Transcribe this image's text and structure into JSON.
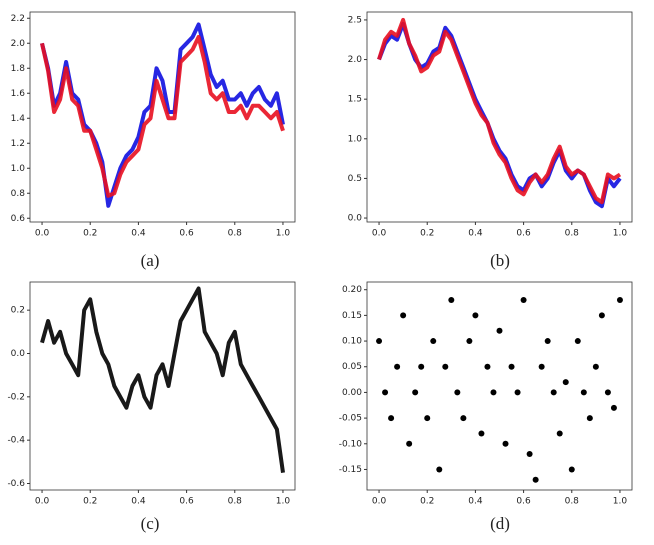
{
  "chart_data": [
    {
      "type": "line",
      "caption": "(a)",
      "x": [
        0,
        0.025,
        0.05,
        0.075,
        0.1,
        0.125,
        0.15,
        0.175,
        0.2,
        0.225,
        0.25,
        0.275,
        0.3,
        0.325,
        0.35,
        0.375,
        0.4,
        0.425,
        0.45,
        0.475,
        0.5,
        0.525,
        0.55,
        0.575,
        0.6,
        0.625,
        0.65,
        0.675,
        0.7,
        0.725,
        0.75,
        0.775,
        0.8,
        0.825,
        0.85,
        0.875,
        0.9,
        0.925,
        0.95,
        0.975,
        1
      ],
      "series": [
        {
          "color": "#1010e0",
          "values": [
            2.0,
            1.8,
            1.5,
            1.6,
            1.85,
            1.6,
            1.55,
            1.35,
            1.3,
            1.2,
            1.05,
            0.7,
            0.85,
            1.0,
            1.1,
            1.15,
            1.25,
            1.45,
            1.5,
            1.8,
            1.7,
            1.45,
            1.45,
            1.95,
            2.0,
            2.05,
            2.15,
            1.95,
            1.75,
            1.65,
            1.7,
            1.55,
            1.55,
            1.6,
            1.5,
            1.6,
            1.65,
            1.55,
            1.5,
            1.6,
            1.35
          ]
        },
        {
          "color": "#e81020",
          "values": [
            2.0,
            1.78,
            1.45,
            1.55,
            1.8,
            1.55,
            1.5,
            1.3,
            1.3,
            1.15,
            1.0,
            0.78,
            0.8,
            0.95,
            1.05,
            1.1,
            1.15,
            1.35,
            1.4,
            1.7,
            1.55,
            1.4,
            1.4,
            1.85,
            1.9,
            1.95,
            2.05,
            1.85,
            1.6,
            1.55,
            1.6,
            1.45,
            1.45,
            1.5,
            1.4,
            1.5,
            1.5,
            1.45,
            1.4,
            1.45,
            1.3
          ]
        }
      ],
      "xlim": [
        -0.05,
        1.05
      ],
      "xticks": [
        {
          "value": 0,
          "label": "0.0"
        },
        0.2,
        0.4,
        0.6,
        0.8,
        {
          "value": 1,
          "label": "1.0"
        }
      ],
      "ylim": [
        0.57,
        2.25
      ],
      "yticks": [
        0.6,
        0.8,
        {
          "value": 1,
          "label": "1.0"
        },
        1.2,
        1.4,
        1.6,
        1.8,
        {
          "value": 2,
          "label": "2.0"
        },
        2.2
      ]
    },
    {
      "type": "line",
      "caption": "(b)",
      "x": [
        0,
        0.025,
        0.05,
        0.075,
        0.1,
        0.125,
        0.15,
        0.175,
        0.2,
        0.225,
        0.25,
        0.275,
        0.3,
        0.325,
        0.35,
        0.375,
        0.4,
        0.425,
        0.45,
        0.475,
        0.5,
        0.525,
        0.55,
        0.575,
        0.6,
        0.625,
        0.65,
        0.675,
        0.7,
        0.725,
        0.75,
        0.775,
        0.8,
        0.825,
        0.85,
        0.875,
        0.9,
        0.925,
        0.95,
        0.975,
        1
      ],
      "series": [
        {
          "color": "#1010e0",
          "values": [
            2.0,
            2.2,
            2.3,
            2.25,
            2.45,
            2.2,
            2.0,
            1.9,
            1.95,
            2.1,
            2.15,
            2.4,
            2.3,
            2.1,
            1.9,
            1.7,
            1.5,
            1.35,
            1.2,
            1.0,
            0.85,
            0.75,
            0.55,
            0.4,
            0.35,
            0.5,
            0.55,
            0.4,
            0.5,
            0.7,
            0.85,
            0.6,
            0.5,
            0.6,
            0.55,
            0.35,
            0.2,
            0.15,
            0.5,
            0.4,
            0.5
          ]
        },
        {
          "color": "#e81020",
          "values": [
            2.0,
            2.25,
            2.35,
            2.3,
            2.5,
            2.2,
            2.05,
            1.85,
            1.9,
            2.05,
            2.1,
            2.35,
            2.25,
            2.05,
            1.85,
            1.65,
            1.45,
            1.3,
            1.2,
            0.95,
            0.8,
            0.7,
            0.5,
            0.35,
            0.3,
            0.45,
            0.55,
            0.45,
            0.55,
            0.75,
            0.9,
            0.65,
            0.55,
            0.6,
            0.55,
            0.4,
            0.25,
            0.2,
            0.55,
            0.5,
            0.55
          ]
        }
      ],
      "xlim": [
        -0.05,
        1.05
      ],
      "xticks": [
        {
          "value": 0,
          "label": "0.0"
        },
        0.2,
        0.4,
        0.6,
        0.8,
        {
          "value": 1,
          "label": "1.0"
        }
      ],
      "ylim": [
        -0.05,
        2.6
      ],
      "yticks": [
        {
          "value": 0,
          "label": "0.0"
        },
        0.5,
        {
          "value": 1,
          "label": "1.0"
        },
        1.5,
        {
          "value": 2,
          "label": "2.0"
        },
        2.5
      ]
    },
    {
      "type": "line",
      "caption": "(c)",
      "x": [
        0,
        0.025,
        0.05,
        0.075,
        0.1,
        0.125,
        0.15,
        0.175,
        0.2,
        0.225,
        0.25,
        0.275,
        0.3,
        0.325,
        0.35,
        0.375,
        0.4,
        0.425,
        0.45,
        0.475,
        0.5,
        0.525,
        0.55,
        0.575,
        0.6,
        0.625,
        0.65,
        0.675,
        0.7,
        0.725,
        0.75,
        0.775,
        0.8,
        0.825,
        0.85,
        0.875,
        0.9,
        0.925,
        0.95,
        0.975,
        1
      ],
      "series": [
        {
          "color": "#000000",
          "values": [
            0.05,
            0.15,
            0.05,
            0.1,
            0.0,
            -0.05,
            -0.1,
            0.2,
            0.25,
            0.1,
            0.0,
            -0.05,
            -0.15,
            -0.2,
            -0.25,
            -0.15,
            -0.1,
            -0.2,
            -0.25,
            -0.1,
            -0.05,
            -0.15,
            0.0,
            0.15,
            0.2,
            0.25,
            0.3,
            0.1,
            0.05,
            0.0,
            -0.1,
            0.05,
            0.1,
            -0.05,
            -0.1,
            -0.15,
            -0.2,
            -0.25,
            -0.3,
            -0.35,
            -0.55
          ]
        }
      ],
      "xlim": [
        -0.05,
        1.05
      ],
      "xticks": [
        {
          "value": 0,
          "label": "0.0"
        },
        0.2,
        0.4,
        0.6,
        0.8,
        {
          "value": 1,
          "label": "1.0"
        }
      ],
      "ylim": [
        -0.63,
        0.33
      ],
      "yticks": [
        -0.6,
        -0.4,
        -0.2,
        {
          "value": 0,
          "label": "0.0"
        },
        0.2
      ]
    },
    {
      "type": "scatter",
      "caption": "(d)",
      "x": [
        0,
        0.025,
        0.05,
        0.075,
        0.1,
        0.125,
        0.15,
        0.175,
        0.2,
        0.225,
        0.25,
        0.275,
        0.3,
        0.325,
        0.35,
        0.375,
        0.4,
        0.425,
        0.45,
        0.475,
        0.5,
        0.525,
        0.55,
        0.575,
        0.6,
        0.625,
        0.65,
        0.675,
        0.7,
        0.725,
        0.75,
        0.775,
        0.8,
        0.825,
        0.85,
        0.875,
        0.9,
        0.925,
        0.95,
        0.975,
        1
      ],
      "series": [
        {
          "color": "#000000",
          "values": [
            0.1,
            0.0,
            -0.05,
            0.05,
            0.15,
            -0.1,
            0.0,
            0.05,
            -0.05,
            0.1,
            -0.15,
            0.05,
            0.18,
            0.0,
            -0.05,
            0.1,
            0.15,
            -0.08,
            0.05,
            0.0,
            0.12,
            -0.1,
            0.05,
            0.0,
            0.18,
            -0.12,
            -0.17,
            0.05,
            0.1,
            0.0,
            -0.08,
            0.02,
            -0.15,
            0.1,
            0.0,
            -0.05,
            0.05,
            0.15,
            0.0,
            -0.03,
            0.18
          ]
        }
      ],
      "xlim": [
        -0.05,
        1.05
      ],
      "xticks": [
        {
          "value": 0,
          "label": "0.0"
        },
        0.2,
        0.4,
        0.6,
        0.8,
        {
          "value": 1,
          "label": "1.0"
        }
      ],
      "ylim": [
        -0.19,
        0.215
      ],
      "yticks": [
        -0.15,
        {
          "value": -0.1,
          "label": "-0.10"
        },
        -0.05,
        {
          "value": 0,
          "label": "0.00"
        },
        0.05,
        {
          "value": 0.1,
          "label": "0.10"
        },
        0.15,
        {
          "value": 0.2,
          "label": "0.20"
        }
      ]
    }
  ]
}
